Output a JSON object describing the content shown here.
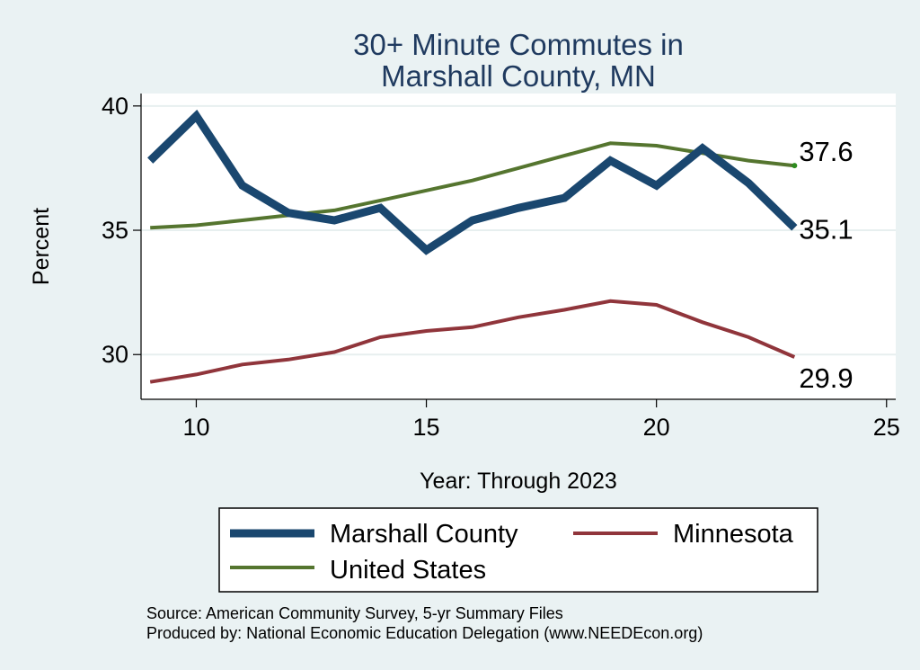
{
  "chart_data": {
    "type": "line",
    "title": [
      "30+ Minute Commutes in",
      "Marshall County, MN"
    ],
    "xlabel": "Year: Through 2023",
    "ylabel": "Percent",
    "xlim": [
      8.8,
      25.2
    ],
    "ylim": [
      28.2,
      40.5
    ],
    "xticks": [
      10,
      15,
      20,
      25
    ],
    "yticks": [
      30,
      35,
      40
    ],
    "grid": true,
    "x": [
      9,
      10,
      11,
      12,
      13,
      14,
      15,
      16,
      17,
      18,
      19,
      20,
      21,
      22,
      23
    ],
    "series": [
      {
        "name": "Marshall County",
        "color": "#1a476f",
        "values": [
          37.8,
          39.6,
          36.8,
          35.7,
          35.4,
          35.9,
          34.2,
          35.4,
          35.9,
          36.3,
          37.8,
          36.8,
          38.3,
          36.9,
          35.1
        ],
        "end_label": "35.1"
      },
      {
        "name": "Minnesota",
        "color": "#90353b",
        "values": [
          28.9,
          29.2,
          29.6,
          29.8,
          30.1,
          30.7,
          30.95,
          31.1,
          31.5,
          31.8,
          32.15,
          32.0,
          31.3,
          30.7,
          29.9
        ],
        "end_label": "29.9"
      },
      {
        "name": "United States",
        "color": "#55752f",
        "values": [
          35.1,
          35.2,
          35.4,
          35.6,
          35.8,
          36.2,
          36.6,
          37.0,
          37.5,
          38.0,
          38.5,
          38.4,
          38.1,
          37.8,
          37.6
        ],
        "end_label": "37.6"
      }
    ],
    "legend": {
      "position": "bottom",
      "items": [
        "Marshall County",
        "Minnesota",
        "United States"
      ]
    }
  },
  "source": {
    "line1": "Source: American Community Survey, 5-yr Summary Files",
    "line2": "Produced by: National Economic Education Delegation (www.NEEDEcon.org)"
  }
}
